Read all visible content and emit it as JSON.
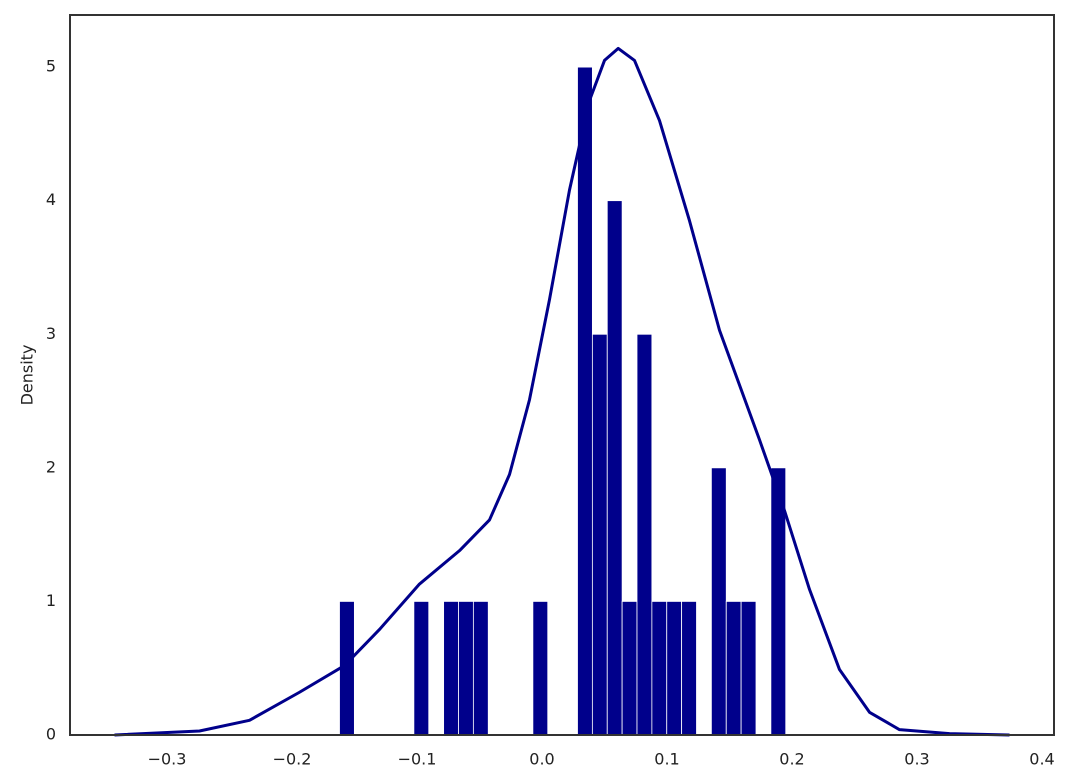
{
  "chart_data": {
    "type": "histogram",
    "y_label": "Density",
    "bins": [
      -0.162,
      -0.1501,
      -0.1382,
      -0.1263,
      -0.1144,
      -0.1025,
      -0.0906,
      -0.0787,
      -0.0668,
      -0.0549,
      -0.043,
      -0.0311,
      -0.0192,
      -0.0073,
      0.0046,
      0.0165,
      0.0284,
      0.0403,
      0.0522,
      0.0641,
      0.076,
      0.0879,
      0.0998,
      0.1117,
      0.1236,
      0.1355,
      0.1474,
      0.1593,
      0.1712,
      0.1831,
      0.195
    ],
    "values": [
      1,
      0,
      0,
      0,
      0,
      1,
      0,
      1,
      1,
      1,
      0,
      0,
      0,
      1,
      0,
      0,
      5,
      3,
      4,
      1,
      3,
      1,
      1,
      1,
      0,
      2,
      1,
      1,
      0,
      2
    ],
    "color": "#00008b",
    "overlay": {
      "type": "line",
      "x": [
        -0.342,
        -0.274,
        -0.234,
        -0.194,
        -0.158,
        -0.13,
        -0.098,
        -0.066,
        -0.042,
        -0.026,
        -0.01,
        0.006,
        0.022,
        0.038,
        0.05,
        0.061,
        0.074,
        0.094,
        0.118,
        0.142,
        0.174,
        0.194,
        0.214,
        0.238,
        0.262,
        0.286,
        0.326,
        0.374
      ],
      "values": [
        0,
        0.03,
        0.11,
        0.32,
        0.52,
        0.79,
        1.13,
        1.38,
        1.61,
        1.95,
        2.51,
        3.26,
        4.08,
        4.75,
        5.05,
        5.14,
        5.05,
        4.6,
        3.85,
        3.03,
        2.21,
        1.68,
        1.09,
        0.49,
        0.17,
        0.04,
        0.01,
        0
      ],
      "color": "#00008b"
    },
    "xlim": [
      -0.3776,
      0.4096
    ],
    "ylim": [
      0,
      5.39
    ],
    "xticks": [
      {
        "value": -0.3,
        "label": "−0.3"
      },
      {
        "value": -0.2,
        "label": "−0.2"
      },
      {
        "value": -0.1,
        "label": "−0.1"
      },
      {
        "value": 0,
        "label": "0.0"
      },
      {
        "value": 0.1,
        "label": "0.1"
      },
      {
        "value": 0.2,
        "label": "0.2"
      },
      {
        "value": 0.3,
        "label": "0.3"
      },
      {
        "value": 0.4,
        "label": "0.4"
      }
    ],
    "yticks": [
      0,
      1,
      2,
      3,
      4,
      5
    ],
    "grid": false
  }
}
